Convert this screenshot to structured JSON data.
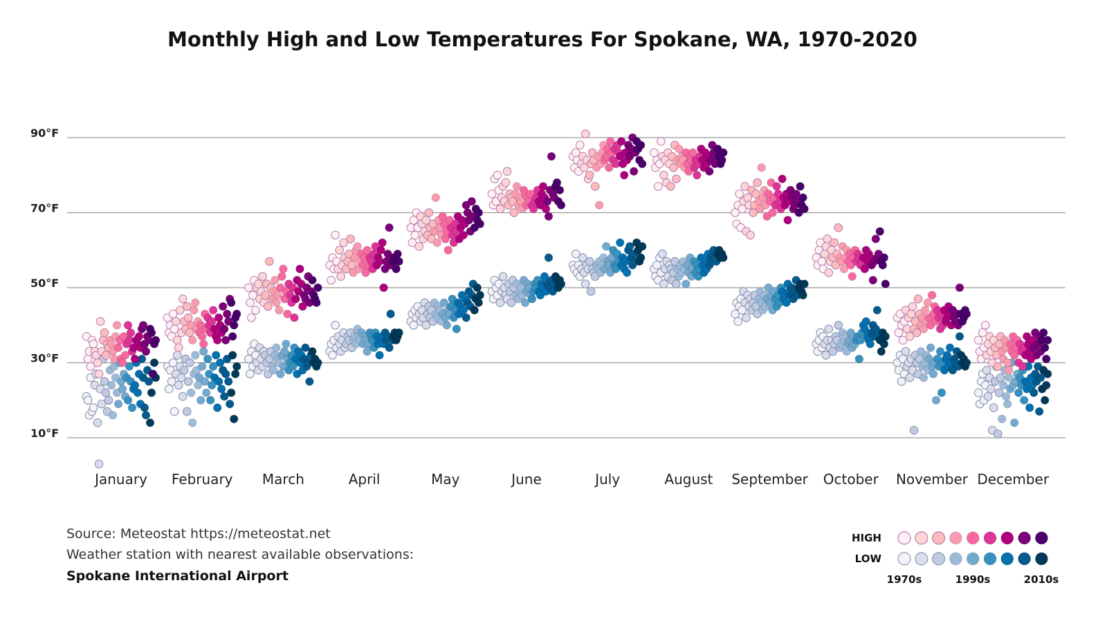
{
  "chart_data": {
    "type": "scatter",
    "title": "Monthly High and Low Temperatures For Spokane, WA, 1970-2020",
    "y_ticks": [
      "10°F",
      "30°F",
      "50°F",
      "70°F",
      "90°F"
    ],
    "y_tick_values": [
      10,
      30,
      50,
      70,
      90
    ],
    "ylim": [
      10,
      90
    ],
    "grid": "horizontal",
    "categories": [
      "January",
      "February",
      "March",
      "April",
      "May",
      "June",
      "July",
      "August",
      "September",
      "October",
      "November",
      "December"
    ],
    "years": [
      1970,
      2020
    ],
    "highs": [
      [
        37,
        31,
        33,
        29,
        36,
        35,
        33,
        32,
        30,
        27,
        41,
        33,
        36,
        38,
        32,
        35,
        34,
        36,
        35,
        33,
        31,
        37,
        40,
        34,
        36,
        31,
        30,
        37,
        32,
        35,
        40,
        36,
        38,
        33,
        34,
        31,
        36,
        35,
        37,
        34,
        39,
        40,
        35,
        33,
        37,
        36,
        39,
        38,
        27,
        35,
        36
      ],
      [
        42,
        38,
        40,
        37,
        43,
        39,
        41,
        36,
        34,
        44,
        38,
        47,
        41,
        39,
        45,
        42,
        38,
        40,
        36,
        44,
        46,
        39,
        41,
        38,
        40,
        37,
        35,
        43,
        39,
        42,
        40,
        38,
        41,
        44,
        39,
        37,
        36,
        42,
        40,
        38,
        45,
        39,
        36,
        43,
        41,
        47,
        46,
        37,
        40,
        42,
        43
      ],
      [
        50,
        46,
        42,
        48,
        52,
        44,
        50,
        51,
        47,
        49,
        53,
        46,
        48,
        51,
        45,
        57,
        50,
        47,
        49,
        52,
        46,
        48,
        44,
        50,
        53,
        55,
        47,
        49,
        43,
        51,
        48,
        46,
        50,
        42,
        47,
        52,
        49,
        55,
        51,
        45,
        48,
        47,
        50,
        53,
        46,
        49,
        52,
        48,
        47,
        46,
        50
      ],
      [
        56,
        52,
        58,
        55,
        64,
        57,
        55,
        60,
        53,
        56,
        62,
        58,
        55,
        57,
        59,
        63,
        56,
        54,
        58,
        60,
        61,
        55,
        57,
        59,
        56,
        58,
        54,
        60,
        56,
        58,
        57,
        55,
        59,
        61,
        56,
        58,
        57,
        60,
        62,
        50,
        55,
        57,
        59,
        66,
        56,
        58,
        57,
        58,
        55,
        59,
        57
      ],
      [
        66,
        62,
        68,
        64,
        70,
        66,
        61,
        69,
        67,
        63,
        65,
        68,
        64,
        70,
        66,
        63,
        67,
        65,
        74,
        62,
        68,
        66,
        64,
        69,
        67,
        63,
        65,
        60,
        68,
        66,
        64,
        62,
        67,
        65,
        69,
        63,
        66,
        68,
        64,
        67,
        72,
        70,
        68,
        65,
        73,
        69,
        66,
        71,
        68,
        70,
        67
      ],
      [
        75,
        72,
        79,
        73,
        80,
        76,
        71,
        74,
        77,
        73,
        78,
        81,
        72,
        75,
        74,
        73,
        70,
        75,
        77,
        72,
        74,
        73,
        71,
        76,
        75,
        72,
        74,
        73,
        75,
        72,
        71,
        73,
        74,
        76,
        73,
        72,
        75,
        77,
        74,
        71,
        73,
        69,
        76,
        85,
        75,
        74,
        77,
        78,
        73,
        76,
        72
      ],
      [
        85,
        82,
        86,
        84,
        81,
        88,
        83,
        85,
        82,
        91,
        84,
        79,
        80,
        83,
        86,
        84,
        77,
        82,
        85,
        72,
        83,
        86,
        88,
        84,
        85,
        87,
        82,
        89,
        86,
        84,
        87,
        83,
        88,
        86,
        85,
        89,
        83,
        80,
        86,
        84,
        88,
        85,
        87,
        90,
        81,
        86,
        89,
        87,
        84,
        88,
        83
      ],
      [
        86,
        82,
        84,
        77,
        83,
        89,
        85,
        80,
        84,
        78,
        86,
        83,
        77,
        85,
        82,
        88,
        79,
        84,
        87,
        83,
        85,
        84,
        82,
        86,
        83,
        81,
        85,
        84,
        86,
        82,
        84,
        80,
        83,
        85,
        87,
        84,
        82,
        86,
        83,
        85,
        81,
        84,
        88,
        86,
        83,
        84,
        87,
        85,
        83,
        84,
        86
      ],
      [
        70,
        67,
        72,
        75,
        66,
        71,
        73,
        77,
        65,
        74,
        72,
        64,
        76,
        70,
        72,
        75,
        78,
        73,
        71,
        82,
        74,
        76,
        72,
        69,
        75,
        73,
        78,
        70,
        74,
        72,
        77,
        75,
        73,
        71,
        79,
        74,
        72,
        75,
        68,
        73,
        76,
        74,
        71,
        72,
        75,
        73,
        70,
        77,
        72,
        74,
        71
      ],
      [
        58,
        56,
        60,
        62,
        57,
        55,
        59,
        61,
        63,
        54,
        57,
        60,
        58,
        62,
        56,
        59,
        66,
        58,
        57,
        61,
        55,
        58,
        60,
        57,
        59,
        56,
        53,
        58,
        60,
        57,
        59,
        58,
        56,
        57,
        58,
        55,
        60,
        57,
        59,
        58,
        56,
        52,
        57,
        63,
        58,
        59,
        65,
        57,
        56,
        58,
        51
      ],
      [
        42,
        38,
        43,
        40,
        36,
        41,
        44,
        39,
        42,
        37,
        43,
        45,
        39,
        41,
        38,
        47,
        43,
        40,
        42,
        39,
        44,
        41,
        46,
        42,
        40,
        48,
        43,
        45,
        41,
        44,
        42,
        39,
        43,
        40,
        44,
        41,
        42,
        45,
        43,
        40,
        44,
        42,
        41,
        43,
        40,
        50,
        43,
        41,
        42,
        44,
        43
      ],
      [
        36,
        33,
        31,
        38,
        34,
        40,
        32,
        35,
        37,
        33,
        30,
        36,
        34,
        32,
        29,
        35,
        37,
        33,
        31,
        36,
        34,
        30,
        28,
        35,
        33,
        37,
        32,
        34,
        36,
        30,
        35,
        33,
        29,
        34,
        32,
        37,
        35,
        33,
        31,
        36,
        34,
        38,
        32,
        35,
        37,
        33,
        36,
        38,
        34,
        31,
        36
      ]
    ],
    "lows": [
      [
        21,
        20,
        16,
        26,
        17,
        18,
        24,
        27,
        14,
        3,
        23,
        19,
        31,
        25,
        22,
        17,
        20,
        28,
        24,
        16,
        29,
        26,
        22,
        19,
        30,
        25,
        23,
        27,
        21,
        26,
        20,
        29,
        25,
        18,
        23,
        24,
        30,
        22,
        27,
        19,
        31,
        26,
        18,
        16,
        28,
        25,
        14,
        22,
        27,
        30,
        26
      ],
      [
        29,
        23,
        28,
        25,
        30,
        17,
        27,
        32,
        24,
        29,
        26,
        21,
        28,
        31,
        17,
        25,
        30,
        22,
        14,
        27,
        32,
        28,
        24,
        26,
        20,
        29,
        33,
        25,
        22,
        31,
        27,
        20,
        24,
        29,
        26,
        32,
        18,
        25,
        30,
        23,
        28,
        21,
        27,
        31,
        25,
        19,
        22,
        32,
        15,
        27,
        29
      ],
      [
        31,
        27,
        33,
        29,
        35,
        32,
        30,
        28,
        34,
        31,
        29,
        33,
        32,
        30,
        27,
        31,
        33,
        29,
        28,
        32,
        34,
        31,
        30,
        27,
        32,
        29,
        33,
        35,
        31,
        28,
        30,
        32,
        29,
        34,
        31,
        27,
        33,
        30,
        32,
        28,
        31,
        34,
        29,
        30,
        25,
        32,
        33,
        30,
        31,
        29,
        30
      ],
      [
        33,
        35,
        32,
        36,
        40,
        34,
        37,
        35,
        33,
        36,
        38,
        34,
        35,
        37,
        36,
        38,
        34,
        36,
        37,
        35,
        39,
        37,
        36,
        38,
        35,
        37,
        36,
        33,
        35,
        38,
        37,
        36,
        34,
        38,
        37,
        35,
        32,
        36,
        37,
        35,
        38,
        36,
        37,
        34,
        43,
        36,
        37,
        38,
        36,
        37,
        38
      ],
      [
        41,
        43,
        40,
        44,
        42,
        45,
        43,
        41,
        44,
        42,
        46,
        40,
        43,
        45,
        42,
        44,
        41,
        46,
        43,
        42,
        45,
        44,
        41,
        43,
        46,
        42,
        40,
        44,
        43,
        45,
        47,
        42,
        44,
        39,
        46,
        43,
        45,
        48,
        44,
        47,
        42,
        46,
        49,
        45,
        48,
        51,
        44,
        47,
        50,
        46,
        48
      ],
      [
        49,
        47,
        52,
        50,
        48,
        51,
        46,
        49,
        53,
        50,
        48,
        47,
        51,
        49,
        46,
        52,
        50,
        48,
        51,
        47,
        49,
        50,
        48,
        52,
        46,
        49,
        51,
        50,
        48,
        47,
        49,
        51,
        50,
        52,
        49,
        48,
        51,
        50,
        53,
        49,
        51,
        58,
        50,
        52,
        49,
        51,
        53,
        52,
        50,
        52,
        51
      ],
      [
        56,
        55,
        59,
        54,
        56,
        53,
        55,
        58,
        54,
        51,
        56,
        55,
        57,
        49,
        55,
        54,
        53,
        56,
        55,
        57,
        54,
        56,
        58,
        55,
        61,
        57,
        56,
        54,
        58,
        60,
        56,
        55,
        59,
        57,
        62,
        56,
        58,
        55,
        57,
        54,
        60,
        61,
        58,
        56,
        59,
        57,
        62,
        60,
        57,
        58,
        61
      ],
      [
        55,
        53,
        56,
        52,
        58,
        54,
        59,
        51,
        55,
        57,
        53,
        56,
        55,
        52,
        54,
        57,
        51,
        55,
        53,
        56,
        54,
        57,
        55,
        51,
        56,
        54,
        58,
        53,
        55,
        57,
        54,
        56,
        53,
        55,
        58,
        56,
        54,
        57,
        55,
        59,
        56,
        58,
        57,
        60,
        58,
        57,
        59,
        60,
        58,
        59,
        58
      ],
      [
        43,
        46,
        41,
        45,
        47,
        44,
        49,
        46,
        42,
        48,
        45,
        47,
        44,
        46,
        48,
        45,
        43,
        47,
        49,
        46,
        44,
        48,
        45,
        47,
        50,
        46,
        48,
        44,
        49,
        47,
        45,
        48,
        46,
        50,
        49,
        47,
        48,
        46,
        51,
        49,
        48,
        50,
        47,
        49,
        52,
        48,
        50,
        51,
        49,
        48,
        51
      ],
      [
        35,
        33,
        36,
        38,
        34,
        37,
        35,
        32,
        36,
        39,
        34,
        36,
        33,
        35,
        37,
        36,
        40,
        34,
        35,
        38,
        36,
        37,
        33,
        35,
        36,
        38,
        34,
        37,
        35,
        36,
        37,
        31,
        36,
        38,
        40,
        39,
        41,
        37,
        36,
        35,
        38,
        40,
        37,
        39,
        44,
        38,
        36,
        33,
        38,
        35,
        37
      ],
      [
        30,
        28,
        32,
        25,
        31,
        27,
        33,
        29,
        30,
        26,
        31,
        28,
        12,
        32,
        30,
        27,
        31,
        33,
        29,
        26,
        30,
        32,
        28,
        31,
        34,
        29,
        27,
        30,
        20,
        31,
        29,
        33,
        22,
        30,
        28,
        31,
        32,
        29,
        34,
        30,
        28,
        31,
        30,
        33,
        29,
        37,
        32,
        30,
        31,
        29,
        30
      ],
      [
        22,
        19,
        25,
        27,
        20,
        24,
        28,
        21,
        26,
        23,
        12,
        18,
        25,
        29,
        11,
        22,
        26,
        15,
        24,
        28,
        21,
        19,
        26,
        23,
        30,
        24,
        14,
        25,
        27,
        22,
        26,
        24,
        28,
        20,
        25,
        23,
        29,
        18,
        26,
        24,
        22,
        27,
        25,
        29,
        17,
        26,
        23,
        28,
        20,
        24,
        27
      ]
    ],
    "legend": {
      "placement": "bottom-right",
      "high_label": "HIGH",
      "low_label": "LOW",
      "decade_labels": [
        "1970s",
        "1990s",
        "2010s"
      ],
      "high_colors": [
        "#fff0f3",
        "#fdd6d6",
        "#fcbcbd",
        "#f99bb0",
        "#f768a1",
        "#dd3497",
        "#ae017e",
        "#7a0177",
        "#49006a"
      ],
      "low_colors": [
        "#f4f1f8",
        "#dcdcec",
        "#c2cbe2",
        "#9dbbd9",
        "#74a9cf",
        "#3690c0",
        "#0570b0",
        "#045a8d",
        "#023858"
      ]
    }
  },
  "source": {
    "line1": "Source: Meteostat https://meteostat.net",
    "line2": "Weather station with nearest available observations:",
    "line3": "Spokane International Airport"
  }
}
